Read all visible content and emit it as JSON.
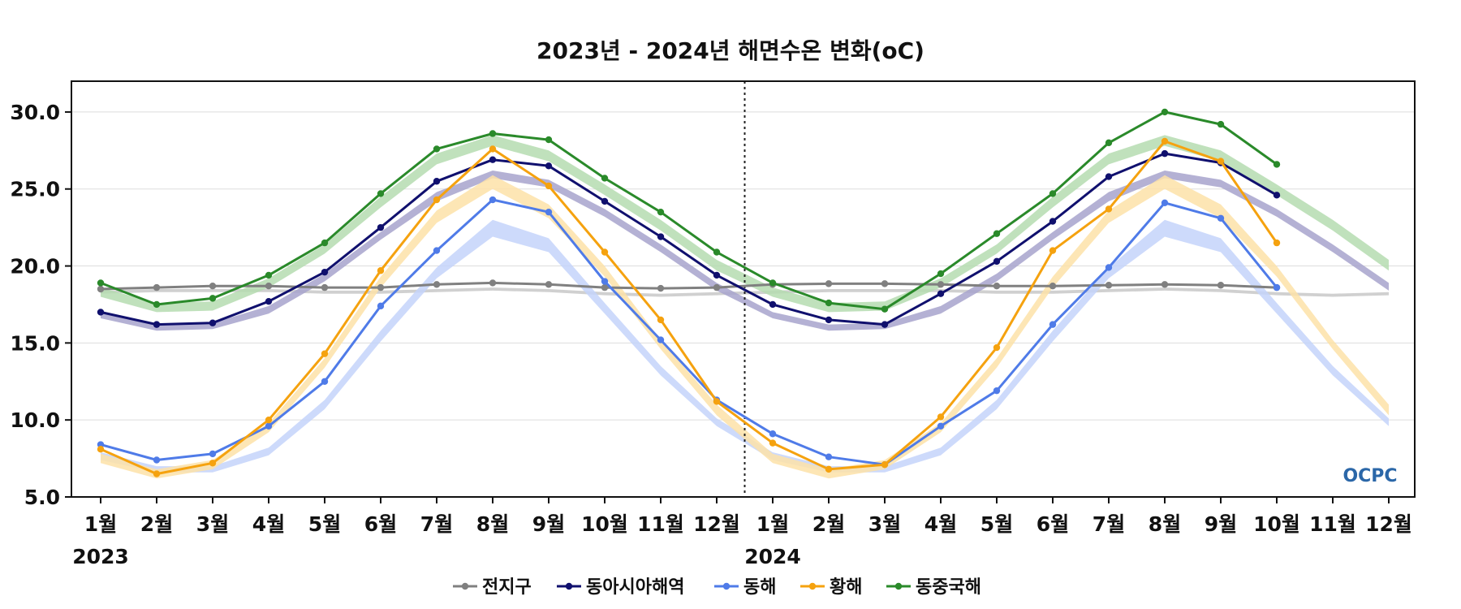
{
  "chart_data": {
    "type": "line",
    "title": "2023년 - 2024년 해면수온 변화(oC)",
    "x_tick_labels": [
      "1월",
      "2월",
      "3월",
      "4월",
      "5월",
      "6월",
      "7월",
      "8월",
      "9월",
      "10월",
      "11월",
      "12월",
      "1월",
      "2월",
      "3월",
      "4월",
      "5월",
      "6월",
      "7월",
      "8월",
      "9월",
      "10월",
      "11월",
      "12월"
    ],
    "year_labels": [
      "2023",
      "2024"
    ],
    "y_ticks": [
      "5.0",
      "10.0",
      "15.0",
      "20.0",
      "25.0",
      "30.0"
    ],
    "ylim": [
      5.0,
      32.0
    ],
    "grid": "horizontal",
    "divider_between": [
      "12월",
      "1월"
    ],
    "legend_position": "bottom-center",
    "logo_text": "OCPC",
    "series": [
      {
        "name": "전지구",
        "color": "#808080",
        "values": [
          18.5,
          18.6,
          18.7,
          18.7,
          18.6,
          18.6,
          18.8,
          18.9,
          18.8,
          18.6,
          18.55,
          18.6,
          18.8,
          18.85,
          18.85,
          18.8,
          18.7,
          18.7,
          18.75,
          18.8,
          18.75,
          18.6
        ]
      },
      {
        "name": "동아시아해역",
        "color": "#10106e",
        "values": [
          17.0,
          16.2,
          16.3,
          17.7,
          19.6,
          22.5,
          25.5,
          26.9,
          26.5,
          24.2,
          21.9,
          19.4,
          17.5,
          16.5,
          16.2,
          18.2,
          20.3,
          22.9,
          25.8,
          27.3,
          26.7,
          24.6
        ]
      },
      {
        "name": "동해",
        "color": "#4f7be8",
        "values": [
          8.4,
          7.4,
          7.8,
          9.6,
          12.5,
          17.4,
          21.0,
          24.3,
          23.5,
          19.0,
          15.2,
          11.3,
          9.1,
          7.6,
          7.1,
          9.6,
          11.9,
          16.2,
          19.9,
          24.1,
          23.1,
          18.6
        ]
      },
      {
        "name": "황해",
        "color": "#f5a20f",
        "values": [
          8.1,
          6.5,
          7.2,
          10.0,
          14.3,
          19.7,
          24.3,
          27.6,
          25.2,
          20.9,
          16.5,
          11.2,
          8.5,
          6.8,
          7.1,
          10.2,
          14.7,
          21.0,
          23.7,
          28.1,
          26.8,
          21.5
        ]
      },
      {
        "name": "동중국해",
        "color": "#2a8a2a",
        "values": [
          18.9,
          17.5,
          17.9,
          19.4,
          21.5,
          24.7,
          27.6,
          28.6,
          28.2,
          25.7,
          23.5,
          20.9,
          18.9,
          17.6,
          17.2,
          19.5,
          22.1,
          24.7,
          28.0,
          30.0,
          29.2,
          26.6
        ]
      }
    ],
    "climatology_bands": [
      {
        "name": "전지구",
        "color": "#c8c8c8",
        "lower": [
          18.2,
          18.3,
          18.3,
          18.3,
          18.2,
          18.2,
          18.3,
          18.4,
          18.3,
          18.1,
          18.0,
          18.1,
          18.2,
          18.3,
          18.3,
          18.3,
          18.2,
          18.2,
          18.3,
          18.4,
          18.3,
          18.1,
          18.0,
          18.1
        ],
        "upper": [
          18.4,
          18.5,
          18.5,
          18.5,
          18.4,
          18.4,
          18.5,
          18.6,
          18.5,
          18.3,
          18.2,
          18.3,
          18.4,
          18.5,
          18.5,
          18.5,
          18.4,
          18.4,
          18.5,
          18.6,
          18.5,
          18.3,
          18.2,
          18.3
        ]
      },
      {
        "name": "동아시아해역",
        "color": "#a7a3cc",
        "lower": [
          16.6,
          15.8,
          15.9,
          16.9,
          19.0,
          21.7,
          24.2,
          25.7,
          25.1,
          23.2,
          20.9,
          18.4,
          16.6,
          15.8,
          15.9,
          16.9,
          19.0,
          21.7,
          24.2,
          25.7,
          25.1,
          23.2,
          20.9,
          18.4
        ],
        "upper": [
          17.0,
          16.2,
          16.3,
          17.4,
          19.5,
          22.2,
          24.8,
          26.2,
          25.6,
          23.7,
          21.4,
          18.9,
          17.0,
          16.2,
          16.3,
          17.4,
          19.5,
          22.2,
          24.8,
          26.2,
          25.6,
          23.7,
          21.4,
          18.9
        ]
      },
      {
        "name": "동해",
        "color": "#c4d3fa",
        "lower": [
          7.4,
          6.6,
          6.6,
          7.7,
          10.7,
          15.1,
          19.2,
          21.9,
          20.9,
          16.9,
          12.9,
          9.6,
          7.4,
          6.6,
          6.6,
          7.7,
          10.7,
          15.1,
          19.2,
          21.9,
          20.9,
          16.9,
          12.9,
          9.6
        ],
        "upper": [
          7.9,
          7.0,
          7.0,
          8.2,
          11.3,
          15.8,
          19.9,
          23.0,
          21.8,
          17.6,
          13.5,
          10.1,
          7.9,
          7.0,
          7.0,
          8.2,
          11.3,
          15.8,
          19.9,
          23.0,
          21.8,
          17.6,
          13.5,
          10.1
        ]
      },
      {
        "name": "황해",
        "color": "#fde2a8",
        "lower": [
          7.2,
          6.2,
          6.8,
          9.2,
          13.4,
          18.6,
          22.8,
          25.0,
          23.1,
          19.3,
          14.6,
          10.3,
          7.2,
          6.2,
          6.8,
          9.2,
          13.4,
          18.6,
          22.8,
          25.0,
          23.1,
          19.3,
          14.6,
          10.3
        ],
        "upper": [
          7.8,
          6.8,
          7.4,
          9.8,
          14.0,
          19.3,
          23.6,
          25.9,
          24.0,
          20.0,
          15.2,
          11.0,
          7.8,
          6.8,
          7.4,
          9.8,
          14.0,
          19.3,
          23.6,
          25.9,
          24.0,
          20.0,
          15.2,
          11.0
        ]
      },
      {
        "name": "동중국해",
        "color": "#b5dcb0",
        "lower": [
          18.0,
          17.0,
          17.1,
          18.6,
          20.8,
          23.8,
          26.6,
          27.8,
          26.8,
          24.6,
          22.3,
          19.7,
          18.0,
          17.0,
          17.1,
          18.6,
          20.8,
          23.8,
          26.6,
          27.8,
          26.8,
          24.6,
          22.3,
          19.7
        ],
        "upper": [
          18.6,
          17.6,
          17.7,
          19.2,
          21.4,
          24.5,
          27.3,
          28.5,
          27.5,
          25.3,
          23.0,
          20.4,
          18.6,
          17.6,
          17.7,
          19.2,
          21.4,
          24.5,
          27.3,
          28.5,
          27.5,
          25.3,
          23.0,
          20.4
        ]
      }
    ]
  }
}
